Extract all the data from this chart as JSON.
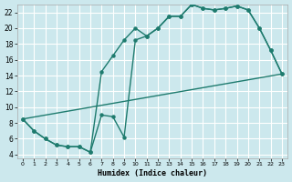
{
  "xlabel": "Humidex (Indice chaleur)",
  "bg_color": "#cce8ed",
  "grid_color": "#ffffff",
  "line_color": "#1e7b6e",
  "xlim": [
    -0.5,
    23.5
  ],
  "ylim": [
    3.5,
    23.0
  ],
  "yticks": [
    4,
    6,
    8,
    10,
    12,
    14,
    16,
    18,
    20,
    22
  ],
  "xticks": [
    0,
    1,
    2,
    3,
    4,
    5,
    6,
    7,
    8,
    9,
    10,
    11,
    12,
    13,
    14,
    15,
    16,
    17,
    18,
    19,
    20,
    21,
    22,
    23
  ],
  "line1_x": [
    0,
    1,
    2,
    3,
    4,
    5,
    6,
    7,
    8,
    9,
    10,
    11,
    12,
    13,
    14,
    15,
    16,
    17,
    18,
    19,
    20,
    21,
    22,
    23
  ],
  "line1_y": [
    8.5,
    7.0,
    6.0,
    5.2,
    5.0,
    5.0,
    4.3,
    14.5,
    16.5,
    18.5,
    20.0,
    19.0,
    20.0,
    21.5,
    21.5,
    23.0,
    22.5,
    22.3,
    22.5,
    22.8,
    22.3,
    20.0,
    17.2,
    14.2
  ],
  "line2_x": [
    0,
    1,
    2,
    3,
    4,
    5,
    6,
    7,
    8,
    9,
    10,
    11,
    12,
    13,
    14,
    15,
    16,
    17,
    18,
    19,
    20,
    21,
    22,
    23
  ],
  "line2_y": [
    8.5,
    7.0,
    6.0,
    5.2,
    5.0,
    5.0,
    4.3,
    9.0,
    8.8,
    6.2,
    18.5,
    19.0,
    20.0,
    21.5,
    21.5,
    23.0,
    22.5,
    22.3,
    22.5,
    22.8,
    22.3,
    20.0,
    17.2,
    14.2
  ],
  "line3_x": [
    0,
    23
  ],
  "line3_y": [
    8.5,
    14.2
  ]
}
